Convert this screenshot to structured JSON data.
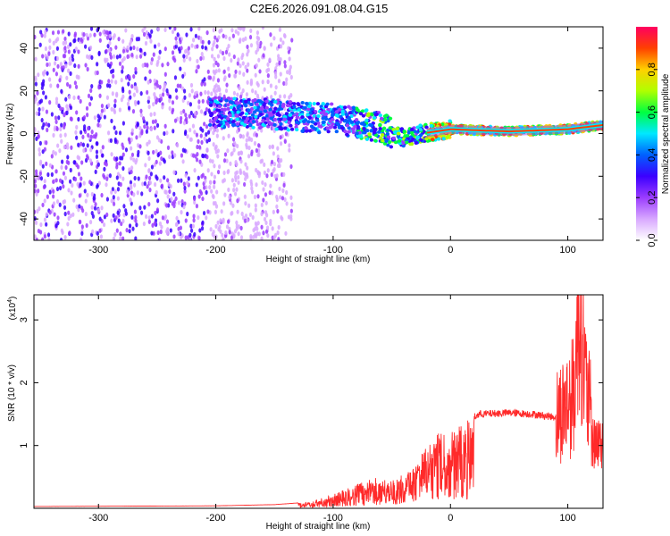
{
  "title": "C2E6.2026.091.08.04.G15",
  "chart_data": [
    {
      "type": "heatmap",
      "xlabel": "Height of straight line (km)",
      "ylabel": "Frequency (Hz)",
      "xlim": [
        -355,
        130
      ],
      "ylim": [
        -50,
        50
      ],
      "xticks": [
        -300,
        -200,
        -100,
        0,
        100
      ],
      "yticks": [
        -40,
        -20,
        0,
        20,
        40
      ],
      "colorbar": {
        "label": "Normalized spectral amplitude",
        "range": [
          0,
          1
        ],
        "ticks": [
          "0.0",
          "0.2",
          "0.4",
          "0.6",
          "0.8"
        ],
        "colormap": [
          "#ffffff",
          "#d8a8ff",
          "#9b3cff",
          "#3b00ff",
          "#0060ff",
          "#00e8ff",
          "#00ff40",
          "#b0ff00",
          "#ffd000",
          "#ff4000",
          "#ff0060"
        ]
      },
      "ridge": [
        {
          "x": -200,
          "y": 10
        },
        {
          "x": -150,
          "y": 9
        },
        {
          "x": -100,
          "y": 7
        },
        {
          "x": -60,
          "y": 3
        },
        {
          "x": -40,
          "y": -2
        },
        {
          "x": -25,
          "y": 0
        },
        {
          "x": 0,
          "y": 2
        },
        {
          "x": 50,
          "y": 1
        },
        {
          "x": 100,
          "y": 2
        },
        {
          "x": 130,
          "y": 4
        }
      ]
    },
    {
      "type": "line",
      "xlabel": "Height of straight line (km)",
      "ylabel": "SNR (10 * v/v)",
      "yunit_label": "(x10",
      "yunit_exp": "4",
      "yunit_close": ")",
      "xlim": [
        -355,
        130
      ],
      "ylim": [
        0,
        3.4
      ],
      "xticks": [
        -300,
        -200,
        -100,
        0,
        100
      ],
      "yticks": [
        1,
        2,
        3
      ],
      "series": [
        {
          "color": "#ff2a2a",
          "envelope": [
            {
              "x": -355,
              "y": 0.03
            },
            {
              "x": -200,
              "y": 0.04
            },
            {
              "x": -150,
              "y": 0.06
            },
            {
              "x": -120,
              "y": 0.1
            },
            {
              "x": -100,
              "y": 0.22
            },
            {
              "x": -80,
              "y": 0.38
            },
            {
              "x": -65,
              "y": 0.5
            },
            {
              "x": -50,
              "y": 0.45
            },
            {
              "x": -35,
              "y": 0.6
            },
            {
              "x": -20,
              "y": 1.0
            },
            {
              "x": -10,
              "y": 1.2
            },
            {
              "x": 0,
              "y": 1.2
            },
            {
              "x": 10,
              "y": 1.35
            },
            {
              "x": 25,
              "y": 1.5
            },
            {
              "x": 50,
              "y": 1.52
            },
            {
              "x": 70,
              "y": 1.5
            },
            {
              "x": 90,
              "y": 1.45
            },
            {
              "x": 105,
              "y": 1.8
            },
            {
              "x": 110,
              "y": 3.4
            },
            {
              "x": 115,
              "y": 2.0
            },
            {
              "x": 120,
              "y": 1.45
            },
            {
              "x": 130,
              "y": 1.45
            }
          ]
        }
      ]
    }
  ]
}
